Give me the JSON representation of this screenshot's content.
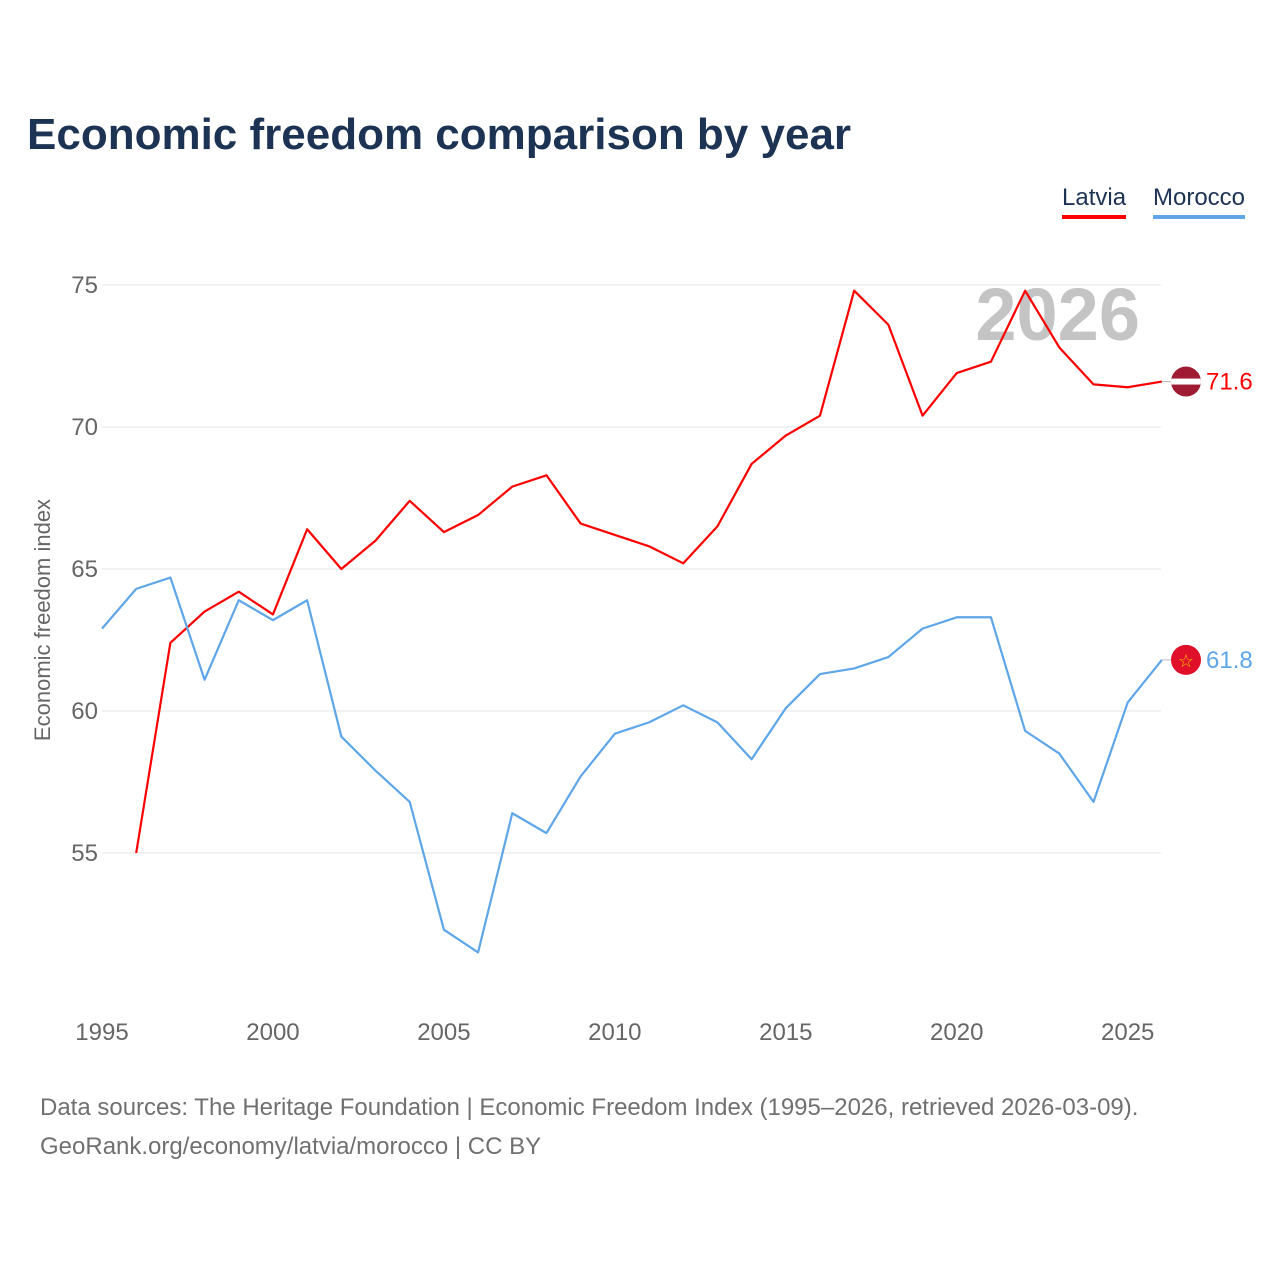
{
  "title": "Economic freedom comparison by year",
  "watermark_year": "2026",
  "footer": {
    "line1": "Data sources: The Heritage Foundation | Economic Freedom Index (1995–2026, retrieved 2026-03-09).",
    "line2": "GeoRank.org/economy/latvia/morocco | CC BY"
  },
  "chart_data": {
    "type": "line",
    "title": "Economic freedom comparison by year",
    "xlabel": "",
    "ylabel": "Economic freedom index",
    "xlim": [
      1995,
      2026
    ],
    "ylim": [
      50,
      77
    ],
    "xticks": [
      1995,
      2000,
      2005,
      2010,
      2015,
      2020,
      2025
    ],
    "yticks": [
      55,
      60,
      65,
      70,
      75
    ],
    "grid": true,
    "legend_placement": "top-right",
    "series": [
      {
        "name": "Latvia",
        "color": "#ff0000",
        "end_label": "71.6",
        "flag": "latvia-flag",
        "x": [
          1996,
          1997,
          1998,
          1999,
          2000,
          2001,
          2002,
          2003,
          2004,
          2005,
          2006,
          2007,
          2008,
          2009,
          2010,
          2011,
          2012,
          2013,
          2014,
          2015,
          2016,
          2017,
          2018,
          2019,
          2020,
          2021,
          2022,
          2023,
          2024,
          2025,
          2026
        ],
        "values": [
          55.0,
          62.4,
          63.5,
          64.2,
          63.4,
          66.4,
          65.0,
          66.0,
          67.4,
          66.3,
          66.9,
          67.9,
          68.3,
          66.6,
          66.2,
          65.8,
          65.2,
          66.5,
          68.7,
          69.7,
          70.4,
          74.8,
          73.6,
          70.4,
          71.9,
          72.3,
          74.8,
          72.8,
          71.5,
          71.4,
          71.6
        ]
      },
      {
        "name": "Morocco",
        "color": "#5ea6e8",
        "end_label": "61.8",
        "flag": "morocco-flag",
        "x": [
          1995,
          1996,
          1997,
          1998,
          1999,
          2000,
          2001,
          2002,
          2003,
          2004,
          2005,
          2006,
          2007,
          2008,
          2009,
          2010,
          2011,
          2012,
          2013,
          2014,
          2015,
          2016,
          2017,
          2018,
          2019,
          2020,
          2021,
          2022,
          2023,
          2024,
          2025,
          2026
        ],
        "values": [
          62.9,
          64.3,
          64.7,
          61.1,
          63.9,
          63.2,
          63.9,
          59.1,
          57.9,
          56.8,
          52.3,
          51.5,
          56.4,
          55.7,
          57.7,
          59.2,
          59.6,
          60.2,
          59.6,
          58.3,
          60.1,
          61.3,
          61.5,
          61.9,
          62.9,
          63.3,
          63.3,
          59.3,
          58.5,
          56.8,
          60.3,
          61.8
        ]
      }
    ]
  }
}
